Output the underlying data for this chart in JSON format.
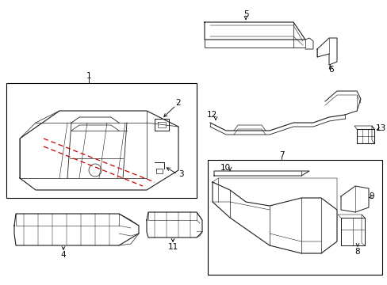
{
  "background_color": "#ffffff",
  "line_color": "#1a1a1a",
  "red_dashed_color": "#cc0000",
  "font_size": 7.5,
  "fig_width": 4.89,
  "fig_height": 3.6,
  "dpi": 100
}
